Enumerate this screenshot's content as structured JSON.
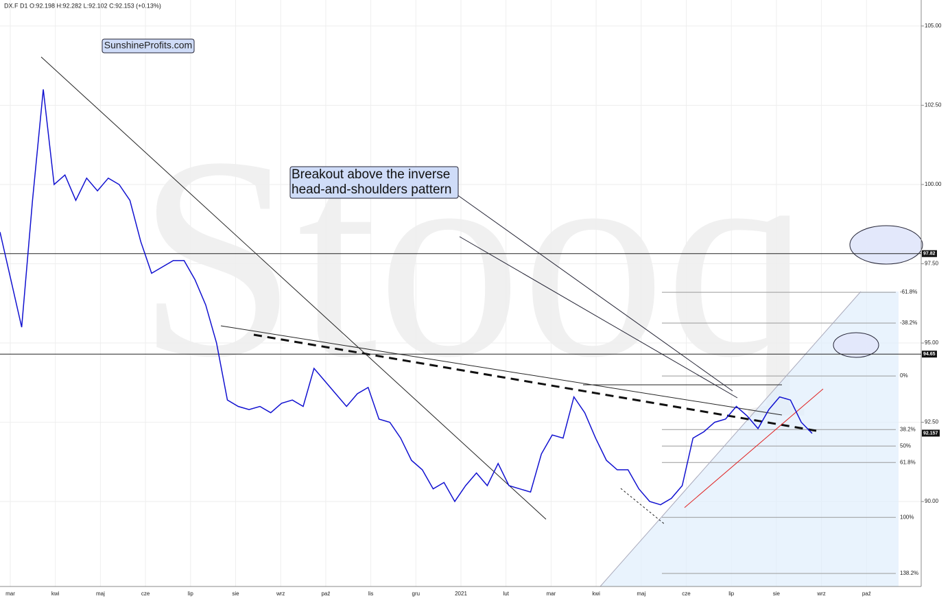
{
  "chart_data": {
    "type": "line",
    "header": "DX.F  D1  O:92.198  H:92.282  L:92.102  C:92.153  (+0.13%)",
    "watermark": "Stooq",
    "annotations": [
      "SunshineProfits.com",
      "Breakout above the inverse head-and-shoulders pattern"
    ],
    "x_labels": [
      "mar",
      "kwi",
      "maj",
      "cze",
      "lip",
      "sie",
      "wrz",
      "paź",
      "lis",
      "gru",
      "2021",
      "lut",
      "mar",
      "kwi",
      "maj",
      "cze",
      "lip",
      "sie",
      "wrz",
      "paź"
    ],
    "series": [
      {
        "name": "DX.F",
        "color": "#1010d0",
        "values": [
          98.5,
          97.0,
          95.5,
          99.5,
          103,
          100,
          100.3,
          99.5,
          100.2,
          99.8,
          100.2,
          100,
          99.5,
          98.2,
          97.2,
          97.4,
          97.6,
          97.6,
          97.0,
          96.2,
          95,
          93.2,
          93.0,
          92.9,
          93.0,
          92.8,
          93.1,
          93.2,
          93.0,
          94.2,
          93.8,
          93.4,
          93.0,
          93.4,
          93.6,
          92.6,
          92.5,
          92.0,
          91.3,
          91.0,
          90.4,
          90.6,
          90.0,
          90.5,
          90.9,
          90.5,
          91.2,
          90.5,
          90.4,
          90.3,
          91.5,
          92.1,
          92.0,
          93.3,
          92.8,
          92.0,
          91.3,
          91.0,
          91.0,
          90.4,
          90.0,
          89.9,
          90.1,
          90.5,
          92.0,
          92.2,
          92.5,
          92.6,
          93.0,
          92.7,
          92.3,
          92.9,
          93.3,
          93.2,
          92.5,
          92.15
        ]
      }
    ],
    "ylim": [
      87.32,
      105.82
    ],
    "yticks": [
      {
        "value": 90,
        "label": "90.00"
      },
      {
        "value": 92.5,
        "label": "92.50"
      },
      {
        "value": 95,
        "label": "95.00"
      },
      {
        "value": 97.5,
        "label": "97.50"
      },
      {
        "value": 100,
        "label": "100.00"
      },
      {
        "value": 102.5,
        "label": "102.50"
      },
      {
        "value": 105,
        "label": "105.00"
      }
    ],
    "grid": true,
    "hlines": [
      97.82,
      94.65
    ],
    "last_price": 92.157,
    "fib_levels": [
      {
        "value": 96.6,
        "label": "-61.8%"
      },
      {
        "value": 95.63,
        "label": "-38.2%"
      },
      {
        "value": 93.96,
        "label": "0%"
      },
      {
        "value": 92.27,
        "label": "38.2%"
      },
      {
        "value": 91.75,
        "label": "50%"
      },
      {
        "value": 91.23,
        "label": "61.8%"
      },
      {
        "value": 89.5,
        "label": "100%"
      },
      {
        "value": 87.73,
        "label": "138.2%"
      }
    ]
  }
}
